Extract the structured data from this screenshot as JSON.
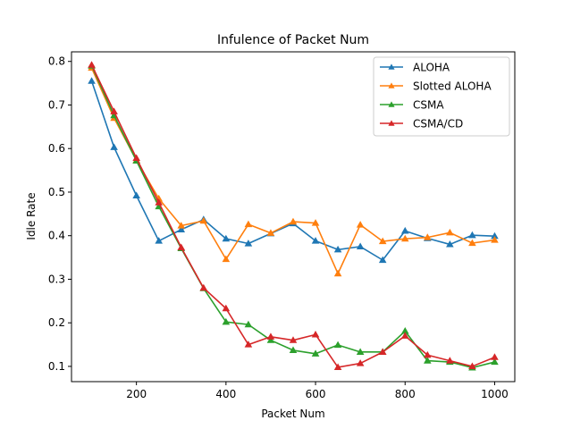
{
  "chart_data": {
    "type": "line",
    "title": "Infulence of Packet Num",
    "xlabel": "Packet Num",
    "ylabel": "Idle Rate",
    "xlim": [
      55,
      1045
    ],
    "ylim": [
      0.065,
      0.822
    ],
    "xticks": [
      200,
      400,
      600,
      800,
      1000
    ],
    "yticks": [
      0.1,
      0.2,
      0.3,
      0.4,
      0.5,
      0.6,
      0.7,
      0.8
    ],
    "grid": false,
    "legend_position": "upper-right",
    "marker": "triangle-up",
    "x": [
      100,
      150,
      200,
      250,
      300,
      350,
      400,
      450,
      500,
      550,
      600,
      650,
      700,
      750,
      800,
      850,
      900,
      950,
      1000
    ],
    "series": [
      {
        "name": "ALOHA",
        "color": "#1f77b4",
        "values": [
          0.755,
          0.603,
          0.492,
          0.388,
          0.414,
          0.437,
          0.393,
          0.382,
          0.405,
          0.428,
          0.388,
          0.368,
          0.375,
          0.344,
          0.411,
          0.394,
          0.38,
          0.401,
          0.399
        ]
      },
      {
        "name": "Slotted ALOHA",
        "color": "#ff7f0e",
        "values": [
          0.785,
          0.67,
          0.573,
          0.485,
          0.423,
          0.434,
          0.346,
          0.426,
          0.406,
          0.432,
          0.429,
          0.313,
          0.425,
          0.387,
          0.393,
          0.396,
          0.407,
          0.383,
          0.39
        ]
      },
      {
        "name": "CSMA",
        "color": "#2ca02c",
        "values": [
          0.79,
          0.676,
          0.572,
          0.467,
          0.371,
          0.279,
          0.202,
          0.196,
          0.16,
          0.137,
          0.129,
          0.149,
          0.133,
          0.133,
          0.181,
          0.113,
          0.11,
          0.097,
          0.11
        ]
      },
      {
        "name": "CSMA/CD",
        "color": "#d62728",
        "values": [
          0.792,
          0.685,
          0.578,
          0.476,
          0.373,
          0.28,
          0.233,
          0.15,
          0.168,
          0.16,
          0.173,
          0.098,
          0.107,
          0.133,
          0.17,
          0.126,
          0.113,
          0.1,
          0.121
        ]
      }
    ]
  }
}
